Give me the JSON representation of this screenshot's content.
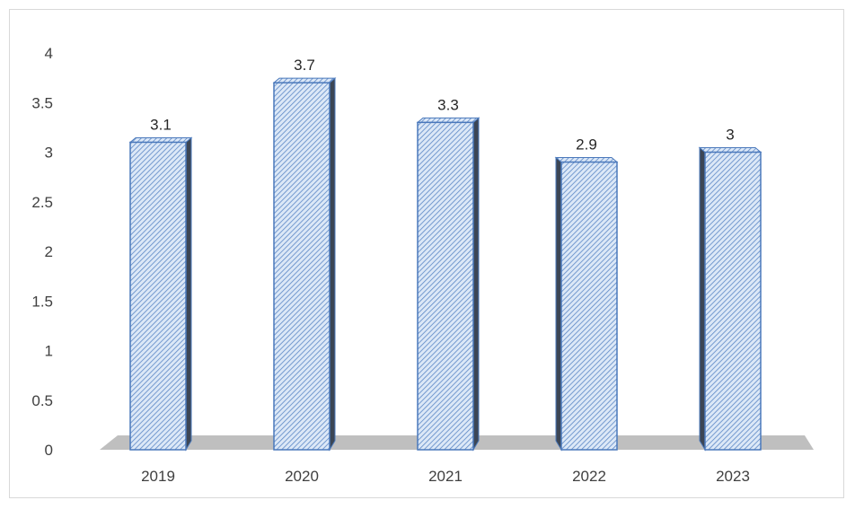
{
  "chart_data": {
    "type": "bar",
    "categories": [
      "2019",
      "2020",
      "2021",
      "2022",
      "2023"
    ],
    "values": [
      3.1,
      3.7,
      3.3,
      2.9,
      3
    ],
    "data_labels": [
      "3.1",
      "3.7",
      "3.3",
      "2.9",
      "3"
    ],
    "title": "",
    "xlabel": "",
    "ylabel": "",
    "ylim": [
      0,
      4
    ],
    "yticks": [
      "0",
      "0.5",
      "1",
      "1.5",
      "2",
      "2.5",
      "3",
      "3.5",
      "4"
    ],
    "grid": false,
    "legend": "none",
    "style": "3d-column",
    "colors": {
      "bar_fill": "#dce8f7",
      "bar_hatch": "#5b87c5",
      "bar_outline": "#4a78bb",
      "floor": "#bfbfbf",
      "side_dark": "#3c4655"
    }
  }
}
